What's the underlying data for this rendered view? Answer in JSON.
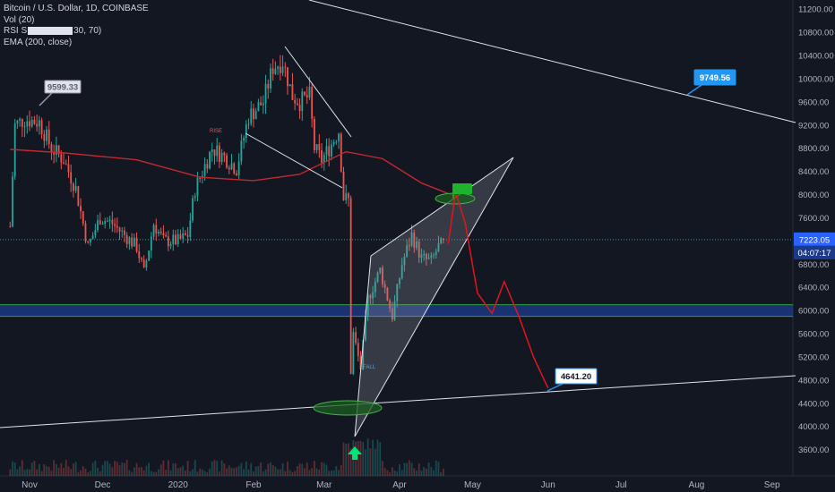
{
  "legend": {
    "title": "Bitcoin / U.S. Dollar, 1D, COINBASE",
    "line2": "Vol (20)",
    "line3": "RSI S",
    "line3_tail": "30, 70)",
    "line4": "EMA (200, close)"
  },
  "colors": {
    "background": "#131722",
    "bull": "#26a69a",
    "bear": "#ef5350",
    "ema": "#c4282d",
    "forecast": "#e3141c",
    "zone": "#1e3c8c",
    "price_tag": "#2962ff",
    "callout_blue": "#2196f3"
  },
  "chart_data": {
    "type": "candlestick",
    "title": "Bitcoin / U.S. Dollar, 1D, COINBASE",
    "y_axis": {
      "ticks": [
        "11200.00",
        "10800.00",
        "10400.00",
        "10000.00",
        "9600.00",
        "9200.00",
        "8800.00",
        "8400.00",
        "8000.00",
        "7600.00",
        "7200.00",
        "6800.00",
        "6400.00",
        "6000.00",
        "5600.00",
        "5200.00",
        "4800.00",
        "4400.00",
        "4000.00",
        "3600.00"
      ],
      "range": [
        3400,
        11350
      ]
    },
    "x_axis": {
      "labels": [
        "Nov",
        "Dec",
        "2020",
        "Feb",
        "Mar",
        "Apr",
        "May",
        "Jun",
        "Jul",
        "Aug",
        "Sep"
      ],
      "label_dates": [
        "2019-11-01",
        "2019-12-01",
        "2020-01-01",
        "2020-02-01",
        "2020-03-01",
        "2020-04-01",
        "2020-05-01",
        "2020-06-01",
        "2020-07-01",
        "2020-08-01",
        "2020-09-01"
      ]
    },
    "price_path": [
      {
        "date": "2019-10-24",
        "close": 7450
      },
      {
        "date": "2019-10-26",
        "close": 9200
      },
      {
        "date": "2019-10-30",
        "close": 9300
      },
      {
        "date": "2019-11-05",
        "close": 9250
      },
      {
        "date": "2019-11-10",
        "close": 8800
      },
      {
        "date": "2019-11-15",
        "close": 8600
      },
      {
        "date": "2019-11-20",
        "close": 8100
      },
      {
        "date": "2019-11-25",
        "close": 7100
      },
      {
        "date": "2019-11-30",
        "close": 7600
      },
      {
        "date": "2019-12-05",
        "close": 7500
      },
      {
        "date": "2019-12-10",
        "close": 7300
      },
      {
        "date": "2019-12-15",
        "close": 7100
      },
      {
        "date": "2019-12-18",
        "close": 6650
      },
      {
        "date": "2019-12-22",
        "close": 7500
      },
      {
        "date": "2019-12-26",
        "close": 7200
      },
      {
        "date": "2020-01-01",
        "close": 7200
      },
      {
        "date": "2020-01-05",
        "close": 7300
      },
      {
        "date": "2020-01-08",
        "close": 8100
      },
      {
        "date": "2020-01-15",
        "close": 8800
      },
      {
        "date": "2020-01-20",
        "close": 8650
      },
      {
        "date": "2020-01-25",
        "close": 8450
      },
      {
        "date": "2020-01-30",
        "close": 9350
      },
      {
        "date": "2020-02-05",
        "close": 9600
      },
      {
        "date": "2020-02-09",
        "close": 10200
      },
      {
        "date": "2020-02-13",
        "close": 10300
      },
      {
        "date": "2020-02-17",
        "close": 9700
      },
      {
        "date": "2020-02-20",
        "close": 9600
      },
      {
        "date": "2020-02-24",
        "close": 9700
      },
      {
        "date": "2020-02-26",
        "close": 8800
      },
      {
        "date": "2020-02-29",
        "close": 8600
      },
      {
        "date": "2020-03-03",
        "close": 8800
      },
      {
        "date": "2020-03-07",
        "close": 9100
      },
      {
        "date": "2020-03-09",
        "close": 7950
      },
      {
        "date": "2020-03-11",
        "close": 7900
      },
      {
        "date": "2020-03-12",
        "close": 4950
      },
      {
        "date": "2020-03-13",
        "close": 5600
      },
      {
        "date": "2020-03-16",
        "close": 5000
      },
      {
        "date": "2020-03-19",
        "close": 6200
      },
      {
        "date": "2020-03-24",
        "close": 6700
      },
      {
        "date": "2020-03-29",
        "close": 5900
      },
      {
        "date": "2020-04-02",
        "close": 6800
      },
      {
        "date": "2020-04-06",
        "close": 7300
      },
      {
        "date": "2020-04-10",
        "close": 6900
      },
      {
        "date": "2020-04-14",
        "close": 6850
      },
      {
        "date": "2020-04-17",
        "close": 7100
      },
      {
        "date": "2020-04-19",
        "close": 7150
      }
    ],
    "ema_200": [
      {
        "date": "2019-10-24",
        "value": 8780
      },
      {
        "date": "2019-11-15",
        "value": 8720
      },
      {
        "date": "2019-12-15",
        "value": 8600
      },
      {
        "date": "2020-01-10",
        "value": 8300
      },
      {
        "date": "2020-02-01",
        "value": 8240
      },
      {
        "date": "2020-02-20",
        "value": 8350
      },
      {
        "date": "2020-03-10",
        "value": 8740
      },
      {
        "date": "2020-03-25",
        "value": 8620
      },
      {
        "date": "2020-04-10",
        "value": 8200
      },
      {
        "date": "2020-04-25",
        "value": 7950
      }
    ],
    "forecast_path": [
      {
        "date": "2020-04-21",
        "price": 7150
      },
      {
        "date": "2020-04-24",
        "price": 8050
      },
      {
        "date": "2020-04-28",
        "price": 7500
      },
      {
        "date": "2020-05-03",
        "price": 6300
      },
      {
        "date": "2020-05-09",
        "price": 5950
      },
      {
        "date": "2020-05-14",
        "price": 6500
      },
      {
        "date": "2020-05-20",
        "price": 5900
      },
      {
        "date": "2020-05-26",
        "price": 5200
      },
      {
        "date": "2020-06-01",
        "price": 4660
      }
    ],
    "support_zone": [
      5900,
      6100
    ],
    "annotations": [
      {
        "label": "9599.33",
        "kind": "callout"
      },
      {
        "label": "9749.56",
        "kind": "callout"
      },
      {
        "label": "4641.20",
        "kind": "callout"
      },
      {
        "label": "RISE",
        "kind": "marker"
      },
      {
        "label": "FALL",
        "kind": "marker"
      }
    ],
    "last_price": "7223.05",
    "countdown": "04:07:17",
    "grid": false
  }
}
